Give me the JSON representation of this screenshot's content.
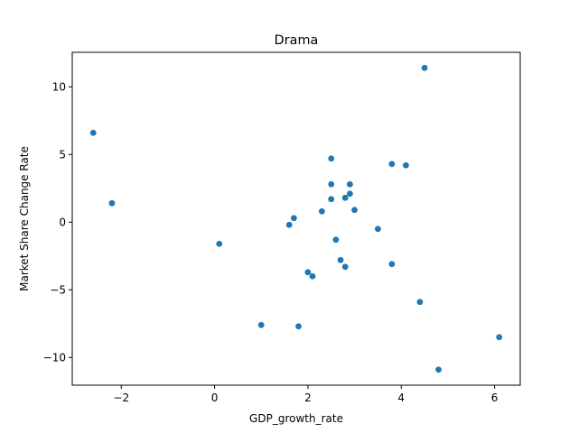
{
  "chart_data": {
    "type": "scatter",
    "title": "Drama",
    "xlabel": "GDP_growth_rate",
    "ylabel": "Market Share Change Rate",
    "xlim": [
      -3.05,
      6.55
    ],
    "ylim": [
      -12.05,
      12.55
    ],
    "xticks": [
      -2,
      0,
      2,
      4,
      6
    ],
    "yticks": [
      -10,
      -5,
      0,
      5,
      10
    ],
    "xtick_labels": [
      "−2",
      "0",
      "2",
      "4",
      "6"
    ],
    "ytick_labels": [
      "−10",
      "−5",
      "0",
      "5",
      "10"
    ],
    "grid": false,
    "legend": "none",
    "marker_color": "#1f77b4",
    "points": [
      {
        "x": -2.6,
        "y": 6.6
      },
      {
        "x": -2.2,
        "y": 1.4
      },
      {
        "x": 0.1,
        "y": -1.6
      },
      {
        "x": 1.0,
        "y": -7.6
      },
      {
        "x": 1.6,
        "y": -0.2
      },
      {
        "x": 1.7,
        "y": 0.3
      },
      {
        "x": 1.8,
        "y": -7.7
      },
      {
        "x": 2.0,
        "y": -3.7
      },
      {
        "x": 2.1,
        "y": -4.0
      },
      {
        "x": 2.3,
        "y": 0.8
      },
      {
        "x": 2.5,
        "y": 4.7
      },
      {
        "x": 2.5,
        "y": 2.8
      },
      {
        "x": 2.5,
        "y": 1.7
      },
      {
        "x": 2.6,
        "y": -1.3
      },
      {
        "x": 2.7,
        "y": -2.8
      },
      {
        "x": 2.8,
        "y": -3.3
      },
      {
        "x": 2.8,
        "y": 1.8
      },
      {
        "x": 2.9,
        "y": 2.8
      },
      {
        "x": 2.9,
        "y": 2.1
      },
      {
        "x": 3.0,
        "y": 0.9
      },
      {
        "x": 3.5,
        "y": -0.5
      },
      {
        "x": 3.8,
        "y": 4.3
      },
      {
        "x": 3.8,
        "y": -3.1
      },
      {
        "x": 4.1,
        "y": 4.2
      },
      {
        "x": 4.4,
        "y": -5.9
      },
      {
        "x": 4.5,
        "y": 11.4
      },
      {
        "x": 4.8,
        "y": -10.9
      },
      {
        "x": 6.1,
        "y": -8.5
      }
    ]
  }
}
